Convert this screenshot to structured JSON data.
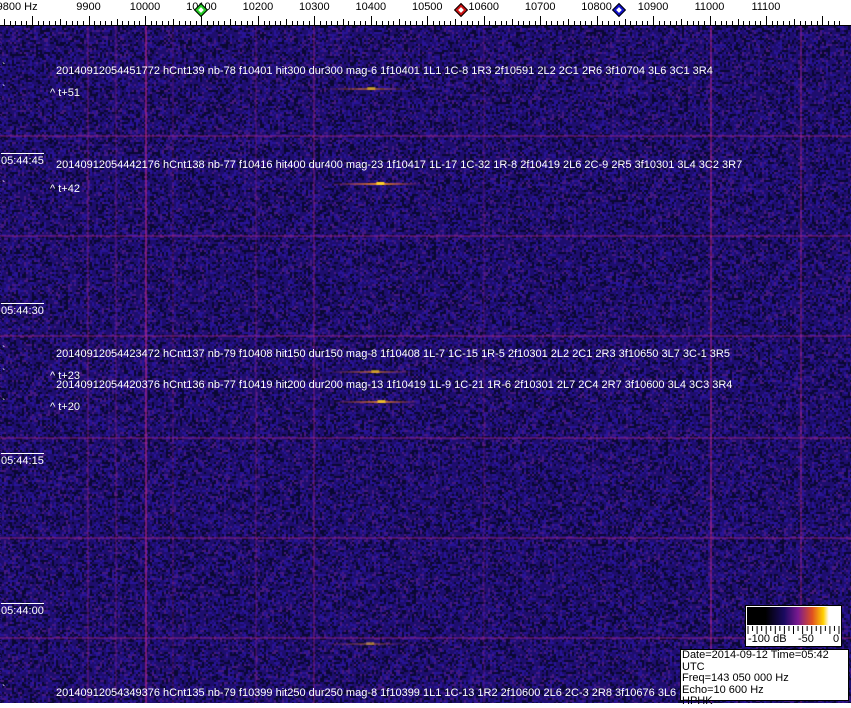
{
  "frequency_axis": {
    "unit": "Hz",
    "labels": [
      {
        "freq": 9800,
        "text": "9800 Hz"
      },
      {
        "freq": 9900,
        "text": "9900"
      },
      {
        "freq": 10000,
        "text": "10000"
      },
      {
        "freq": 10100,
        "text": "10100"
      },
      {
        "freq": 10200,
        "text": "10200"
      },
      {
        "freq": 10300,
        "text": "10300"
      },
      {
        "freq": 10400,
        "text": "10400"
      },
      {
        "freq": 10500,
        "text": "10500"
      },
      {
        "freq": 10600,
        "text": "10600"
      },
      {
        "freq": 10700,
        "text": "10700"
      },
      {
        "freq": 10800,
        "text": "10800"
      },
      {
        "freq": 10900,
        "text": "10900"
      },
      {
        "freq": 11000,
        "text": "11000"
      },
      {
        "freq": 11100,
        "text": "11100"
      }
    ],
    "markers": [
      {
        "freq": 10100,
        "color": "#22cc22"
      },
      {
        "freq": 10560,
        "color": "#cc1111"
      },
      {
        "freq": 10840,
        "color": "#1111cc"
      }
    ]
  },
  "time_labels": [
    "05:44:45",
    "05:44:30",
    "05:44:15",
    "05:44:00"
  ],
  "events": [
    {
      "text": "20140912054451772 hCnt139 nb-78 f10401 hit300 dur300 mag-6 1f10401 1L1 1C-8 1R3 2f10591 2L2 2C1 2R6 3f10704 3L6 3C1 3R4",
      "t": "^ t+51",
      "freq": 10401
    },
    {
      "text": "20140912054442176 hCnt138 nb-77 f10416 hit400 dur400 mag-23 1f10417 1L-17 1C-32 1R-8 2f10419 2L6 2C-9 2R5 3f10301 3L4 3C2 3R7",
      "t": "^ t+42",
      "freq": 10417
    },
    {
      "text": "20140912054423472 hCnt137 nb-79 f10408 hit150 dur150 mag-8 1f10408 1L-7 1C-15 1R-5 2f10301 2L2 2C1 2R3 3f10650 3L7 3C-1 3R5",
      "t": "^ t+23",
      "freq": 10408
    },
    {
      "text": "20140912054420376 hCnt136 nb-77 f10419 hit200 dur200 mag-13 1f10419 1L-9 1C-21 1R-6 2f10301 2L7 2C4 2R7 3f10600 3L4 3C3 3R4",
      "t": "^ t+20",
      "freq": 10419
    },
    {
      "text": "20140912054349376 hCnt135 nb-79 f10399 hit250 dur250 mag-8 1f10399 1L1 1C-13 1R2 2f10600 2L6 2C-3 2R8 3f10676 3L6 3C",
      "t": "",
      "freq": 10399
    }
  ],
  "colorbar": {
    "min_label": "-100 dB",
    "mid_label": "-50",
    "max_label": "0"
  },
  "info": {
    "date_time": "Date=2014-09-12 Time=05:42 UTC",
    "freq": "Freq=143 050 000 Hz",
    "echo": "Echo=10 600 Hz",
    "station": "HPHK"
  }
}
